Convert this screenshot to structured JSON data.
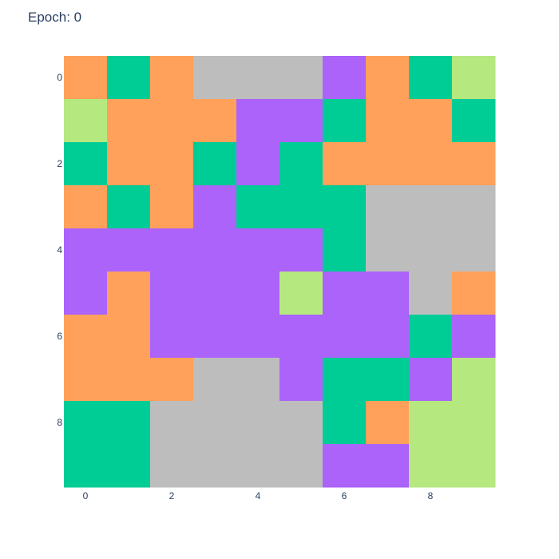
{
  "chart_data": {
    "type": "heatmap",
    "title": "Epoch: 0",
    "xlabel": "",
    "ylabel": "",
    "x_ticks": [
      0,
      2,
      4,
      6,
      8
    ],
    "y_ticks": [
      0,
      2,
      4,
      6,
      8
    ],
    "rows": 10,
    "cols": 10,
    "y_reversed": true,
    "grid": false,
    "legend": "none",
    "colors": {
      "O": "#FFA15A",
      "G": "#00CC96",
      "S": "#BDBDBD",
      "P": "#AB63FA",
      "L": "#B6E880"
    },
    "cells": [
      [
        "O",
        "G",
        "O",
        "S",
        "S",
        "S",
        "P",
        "O",
        "G",
        "L"
      ],
      [
        "L",
        "O",
        "O",
        "O",
        "P",
        "P",
        "G",
        "O",
        "O",
        "G"
      ],
      [
        "G",
        "O",
        "O",
        "G",
        "P",
        "G",
        "O",
        "O",
        "O",
        "O"
      ],
      [
        "O",
        "G",
        "O",
        "P",
        "G",
        "G",
        "G",
        "S",
        "S",
        "S"
      ],
      [
        "P",
        "P",
        "P",
        "P",
        "P",
        "P",
        "G",
        "S",
        "S",
        "S"
      ],
      [
        "P",
        "O",
        "P",
        "P",
        "P",
        "L",
        "P",
        "P",
        "S",
        "O"
      ],
      [
        "O",
        "O",
        "P",
        "P",
        "P",
        "P",
        "P",
        "P",
        "G",
        "P"
      ],
      [
        "O",
        "O",
        "O",
        "S",
        "S",
        "P",
        "G",
        "G",
        "P",
        "L"
      ],
      [
        "G",
        "G",
        "S",
        "S",
        "S",
        "S",
        "G",
        "O",
        "L",
        "L"
      ],
      [
        "G",
        "G",
        "S",
        "S",
        "S",
        "S",
        "P",
        "P",
        "L",
        "L"
      ]
    ]
  }
}
